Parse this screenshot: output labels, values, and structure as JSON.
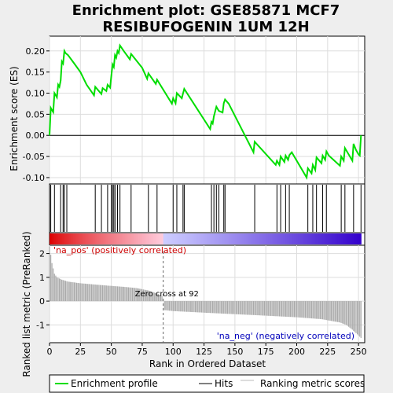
{
  "chart_data": {
    "type": "line",
    "title_line1": "Enrichment plot: GSE85871 MCF7",
    "title_line2": "RESIBUFOGENIN 1UM 12H",
    "xlabel": "Rank in Ordered Dataset",
    "es_ylabel": "Enrichment score (ES)",
    "rank_ylabel": "Ranked list metric (PreRanked)",
    "xlim": [
      0,
      255
    ],
    "es_ylim": [
      -0.115,
      0.235
    ],
    "rank_ylim": [
      -1.75,
      2.35
    ],
    "x_ticks": [
      0,
      25,
      50,
      75,
      100,
      125,
      150,
      175,
      200,
      225,
      250
    ],
    "es_ticks": [
      -0.1,
      -0.05,
      0.0,
      0.05,
      0.1,
      0.15,
      0.2
    ],
    "es_tick_labels": [
      "-0.10",
      "-0.05",
      "0.00",
      "0.05",
      "0.10",
      "0.15",
      "0.20"
    ],
    "rank_ticks": [
      -1,
      0,
      1,
      2
    ],
    "es_curve": {
      "x": [
        0,
        1,
        2,
        3,
        4,
        5,
        6,
        7,
        8,
        9,
        10,
        11,
        12,
        13,
        15,
        20,
        25,
        30,
        36,
        37,
        42,
        43,
        46,
        47,
        49,
        50,
        51,
        52,
        53,
        54,
        55,
        56,
        57,
        60,
        65,
        66,
        75,
        79,
        80,
        86,
        87,
        99,
        100,
        102,
        103,
        107,
        108,
        109,
        130,
        131,
        132,
        133,
        135,
        137,
        140,
        141,
        142,
        145,
        165,
        166,
        183,
        184,
        186,
        187,
        190,
        191,
        193,
        194,
        196,
        208,
        209,
        212,
        213,
        215,
        216,
        220,
        221,
        223,
        224,
        226,
        235,
        236,
        238,
        239,
        245,
        246,
        248,
        250,
        251,
        252
      ],
      "y": [
        0.0,
        0.065,
        0.06,
        0.055,
        0.1,
        0.095,
        0.09,
        0.12,
        0.115,
        0.13,
        0.175,
        0.17,
        0.2,
        0.195,
        0.19,
        0.17,
        0.15,
        0.12,
        0.095,
        0.115,
        0.098,
        0.112,
        0.105,
        0.12,
        0.113,
        0.14,
        0.168,
        0.162,
        0.19,
        0.184,
        0.2,
        0.195,
        0.213,
        0.2,
        0.18,
        0.193,
        0.16,
        0.134,
        0.147,
        0.122,
        0.132,
        0.075,
        0.088,
        0.076,
        0.1,
        0.088,
        0.099,
        0.11,
        0.015,
        0.032,
        0.028,
        0.045,
        0.068,
        0.058,
        0.054,
        0.076,
        0.085,
        0.075,
        -0.04,
        -0.015,
        -0.07,
        -0.06,
        -0.07,
        -0.05,
        -0.063,
        -0.048,
        -0.058,
        -0.047,
        -0.04,
        -0.1,
        -0.078,
        -0.09,
        -0.07,
        -0.082,
        -0.052,
        -0.066,
        -0.048,
        -0.058,
        -0.038,
        -0.048,
        -0.072,
        -0.05,
        -0.06,
        -0.03,
        -0.06,
        -0.02,
        -0.035,
        -0.045,
        -0.048,
        0.0
      ]
    },
    "hits": [
      1,
      4,
      9,
      11,
      12,
      14,
      37,
      42,
      47,
      50,
      51,
      52,
      53,
      55,
      57,
      66,
      80,
      87,
      100,
      103,
      108,
      109,
      131,
      133,
      135,
      137,
      141,
      142,
      166,
      184,
      187,
      191,
      194,
      209,
      213,
      216,
      221,
      224,
      236,
      239,
      246,
      252
    ],
    "zero_cross": 92,
    "zero_cross_label": "Zero cross at 92",
    "pos_label": "'na_pos' (positively correlated)",
    "neg_label": "'na_neg' (negatively correlated)",
    "rank_metric": {
      "x": [
        0,
        2,
        4,
        6,
        10,
        15,
        25,
        45,
        60,
        70,
        80,
        88,
        91,
        92,
        93,
        100,
        130,
        170,
        200,
        220,
        235,
        240,
        245,
        248,
        252
      ],
      "y": [
        2.3,
        1.6,
        1.15,
        1.0,
        0.9,
        0.82,
        0.75,
        0.66,
        0.6,
        0.55,
        0.45,
        0.3,
        0.2,
        0.0,
        -0.38,
        -0.42,
        -0.5,
        -0.6,
        -0.68,
        -0.76,
        -0.9,
        -1.0,
        -1.2,
        -1.35,
        -1.55
      ]
    },
    "legend": [
      "Enrichment profile",
      "Hits",
      "Ranking metric scores"
    ],
    "colors": {
      "es_line": "#00dd00",
      "hits": "#000000",
      "rank_bars": "#aaaaaa",
      "pos_label": "#cc0000",
      "neg_label": "#0000bb",
      "background": "#eeeeee",
      "plot_bg": "#ffffff",
      "heat_pos_strong": "#dd0000",
      "heat_pos_light": "#ffccdd",
      "heat_neg_light": "#ccccff",
      "heat_neg_strong": "#3300cc"
    }
  }
}
